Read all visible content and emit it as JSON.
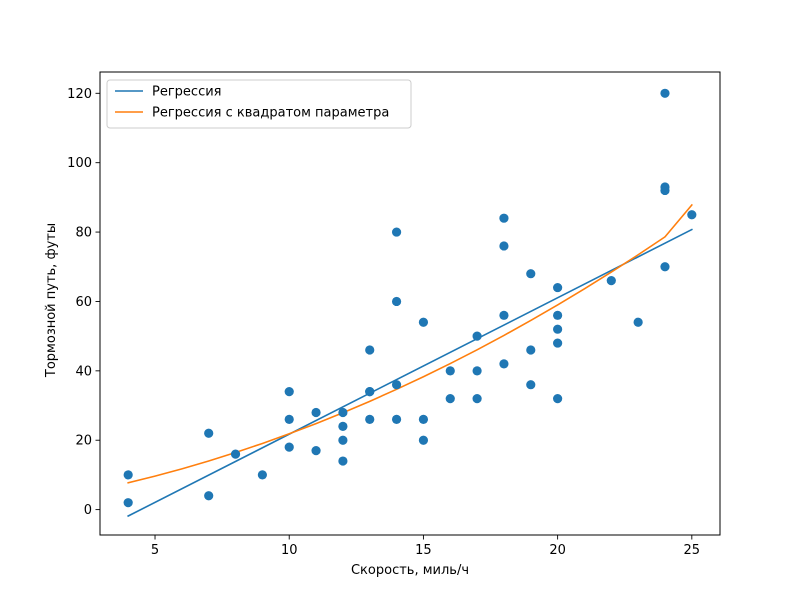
{
  "chart_data": {
    "type": "scatter",
    "title": "",
    "xlabel": "Скорость, миль/ч",
    "ylabel": "Тормозной путь, футы",
    "xlim": [
      2.95,
      26.05
    ],
    "ylim": [
      -7.32,
      126.14
    ],
    "xticks": [
      5,
      10,
      15,
      20,
      25
    ],
    "yticks": [
      0,
      20,
      40,
      60,
      80,
      100,
      120
    ],
    "grid": false,
    "legend_placement": "top-left",
    "points": {
      "color": "#1f77b4",
      "x": [
        4,
        4,
        7,
        7,
        8,
        9,
        10,
        10,
        10,
        11,
        11,
        12,
        12,
        12,
        12,
        13,
        13,
        13,
        13,
        14,
        14,
        14,
        14,
        15,
        15,
        15,
        16,
        16,
        17,
        17,
        17,
        18,
        18,
        18,
        18,
        19,
        19,
        19,
        20,
        20,
        20,
        20,
        20,
        22,
        23,
        24,
        24,
        24,
        24,
        25
      ],
      "y": [
        2,
        10,
        4,
        22,
        16,
        10,
        18,
        26,
        34,
        17,
        28,
        14,
        20,
        24,
        28,
        26,
        34,
        34,
        46,
        26,
        36,
        60,
        80,
        20,
        26,
        54,
        32,
        40,
        32,
        40,
        50,
        42,
        56,
        76,
        84,
        36,
        46,
        68,
        32,
        48,
        52,
        56,
        64,
        66,
        54,
        70,
        92,
        93,
        120,
        85
      ]
    },
    "series": [
      {
        "name": "Регрессия",
        "color": "#1f77b4",
        "x": [
          4,
          25
        ],
        "y": [
          -1.85,
          80.73
        ]
      },
      {
        "name": "Регрессия с квадратом параметра",
        "color": "#ff7f0e",
        "x": [
          4,
          5,
          6,
          7,
          8,
          9,
          10,
          11,
          12,
          13,
          14,
          15,
          16,
          17,
          18,
          19,
          20,
          21,
          22,
          23,
          24,
          25
        ],
        "y": [
          7.72,
          9.65,
          11.75,
          14.02,
          16.46,
          19.07,
          21.85,
          24.8,
          27.92,
          31.21,
          34.67,
          38.3,
          42.1,
          46.07,
          50.21,
          54.52,
          59.0,
          63.65,
          68.47,
          73.46,
          78.62,
          87.8
        ]
      }
    ]
  }
}
